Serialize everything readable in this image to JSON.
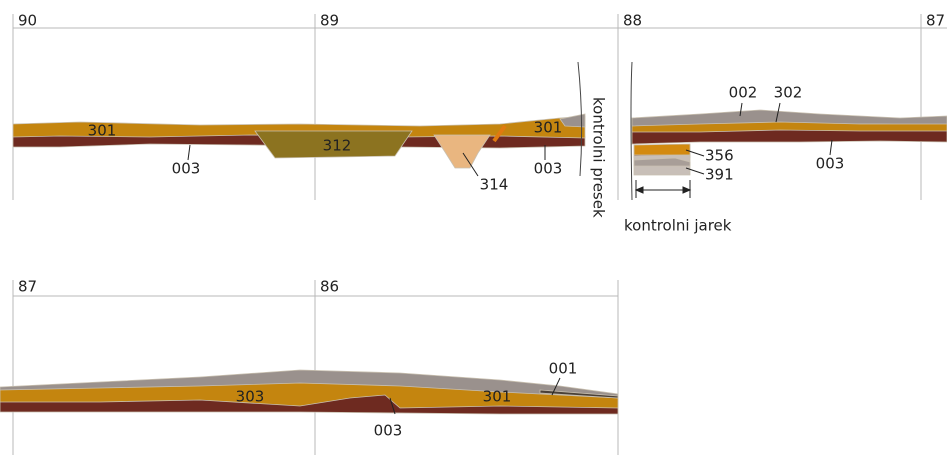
{
  "top_section": {
    "grid_labels": [
      "90",
      "89",
      "88",
      "87"
    ],
    "layer_labels": [
      "301",
      "003",
      "312",
      "314",
      "301",
      "003",
      "002",
      "302",
      "356",
      "391",
      "003"
    ],
    "control_section": "kontrolni presek",
    "control_trench": "kontrolni jarek"
  },
  "bottom_section": {
    "grid_labels": [
      "87",
      "86"
    ],
    "layer_labels": [
      "303",
      "301",
      "001",
      "003"
    ]
  }
}
